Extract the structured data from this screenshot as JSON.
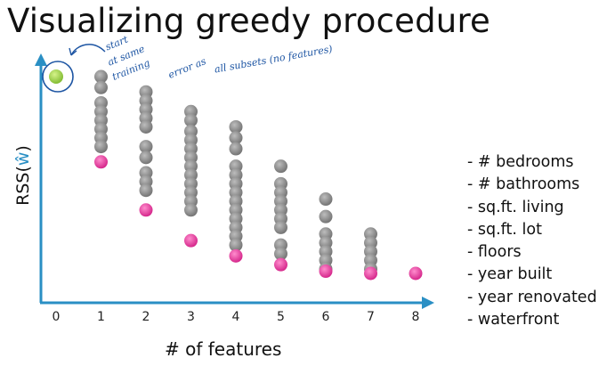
{
  "slide": {
    "title": "Visualizing greedy procedure",
    "ylabel_prefix": "RSS(",
    "ylabel_w": "ŵ",
    "ylabel_suffix": ")",
    "xlabel": "# of features"
  },
  "annotation": {
    "line1": "start",
    "line2": "at same",
    "line3": "training",
    "line4": "error as",
    "line5": "all subsets (no features)"
  },
  "features": [
    "# bedrooms",
    "# bathrooms",
    "sq.ft. living",
    "sq.ft. lot",
    "floors",
    "year built",
    "year renovated",
    "waterfront"
  ],
  "colors": {
    "axis": "#2a8fc4",
    "gray_point": "#8f8f8f",
    "best_point": "#e83e9c",
    "start_point": "#9ad33a",
    "annotation": "#1d55a3"
  },
  "chart_data": {
    "type": "scatter",
    "x_ticks": [
      "0",
      "1",
      "2",
      "3",
      "4",
      "5",
      "6",
      "7",
      "8"
    ],
    "series": [
      {
        "values": [
          {
            "x": 0,
            "y": 100
          },
          {
            "x": 1,
            "y": 100
          },
          {
            "x": 1,
            "y": 95
          },
          {
            "x": 1,
            "y": 88
          },
          {
            "x": 1,
            "y": 84
          },
          {
            "x": 1,
            "y": 80
          },
          {
            "x": 1,
            "y": 76
          },
          {
            "x": 1,
            "y": 72
          },
          {
            "x": 1,
            "y": 68
          },
          {
            "x": 2,
            "y": 93
          },
          {
            "x": 2,
            "y": 89
          },
          {
            "x": 2,
            "y": 85
          },
          {
            "x": 2,
            "y": 81
          },
          {
            "x": 2,
            "y": 77
          },
          {
            "x": 2,
            "y": 68
          },
          {
            "x": 2,
            "y": 63
          },
          {
            "x": 2,
            "y": 56
          },
          {
            "x": 2,
            "y": 52
          },
          {
            "x": 2,
            "y": 48
          },
          {
            "x": 3,
            "y": 84
          },
          {
            "x": 3,
            "y": 80
          },
          {
            "x": 3,
            "y": 75
          },
          {
            "x": 3,
            "y": 71
          },
          {
            "x": 3,
            "y": 67
          },
          {
            "x": 3,
            "y": 63
          },
          {
            "x": 3,
            "y": 59
          },
          {
            "x": 3,
            "y": 55
          },
          {
            "x": 3,
            "y": 51
          },
          {
            "x": 3,
            "y": 47
          },
          {
            "x": 3,
            "y": 43
          },
          {
            "x": 3,
            "y": 39
          },
          {
            "x": 4,
            "y": 77
          },
          {
            "x": 4,
            "y": 72
          },
          {
            "x": 4,
            "y": 67
          },
          {
            "x": 4,
            "y": 59
          },
          {
            "x": 4,
            "y": 55
          },
          {
            "x": 4,
            "y": 51
          },
          {
            "x": 4,
            "y": 47
          },
          {
            "x": 4,
            "y": 43
          },
          {
            "x": 4,
            "y": 39
          },
          {
            "x": 4,
            "y": 35
          },
          {
            "x": 4,
            "y": 31
          },
          {
            "x": 4,
            "y": 27
          },
          {
            "x": 4,
            "y": 23
          },
          {
            "x": 5,
            "y": 59
          },
          {
            "x": 5,
            "y": 51
          },
          {
            "x": 5,
            "y": 47
          },
          {
            "x": 5,
            "y": 43
          },
          {
            "x": 5,
            "y": 39
          },
          {
            "x": 5,
            "y": 35
          },
          {
            "x": 5,
            "y": 31
          },
          {
            "x": 5,
            "y": 23
          },
          {
            "x": 5,
            "y": 19
          },
          {
            "x": 6,
            "y": 44
          },
          {
            "x": 6,
            "y": 36
          },
          {
            "x": 6,
            "y": 28
          },
          {
            "x": 6,
            "y": 24
          },
          {
            "x": 6,
            "y": 20
          },
          {
            "x": 6,
            "y": 16
          },
          {
            "x": 6,
            "y": 12
          },
          {
            "x": 7,
            "y": 28
          },
          {
            "x": 7,
            "y": 24
          },
          {
            "x": 7,
            "y": 20
          },
          {
            "x": 7,
            "y": 16
          },
          {
            "x": 7,
            "y": 12
          }
        ]
      },
      {
        "values": [
          {
            "x": 1,
            "y": 61
          },
          {
            "x": 2,
            "y": 39
          },
          {
            "x": 3,
            "y": 25
          },
          {
            "x": 4,
            "y": 18
          },
          {
            "x": 5,
            "y": 14
          },
          {
            "x": 6,
            "y": 11
          },
          {
            "x": 7,
            "y": 10
          },
          {
            "x": 8,
            "y": 10
          }
        ]
      }
    ],
    "xlim": [
      0,
      8
    ],
    "ylim": [
      0,
      110
    ],
    "grid": false,
    "legend": "none"
  }
}
